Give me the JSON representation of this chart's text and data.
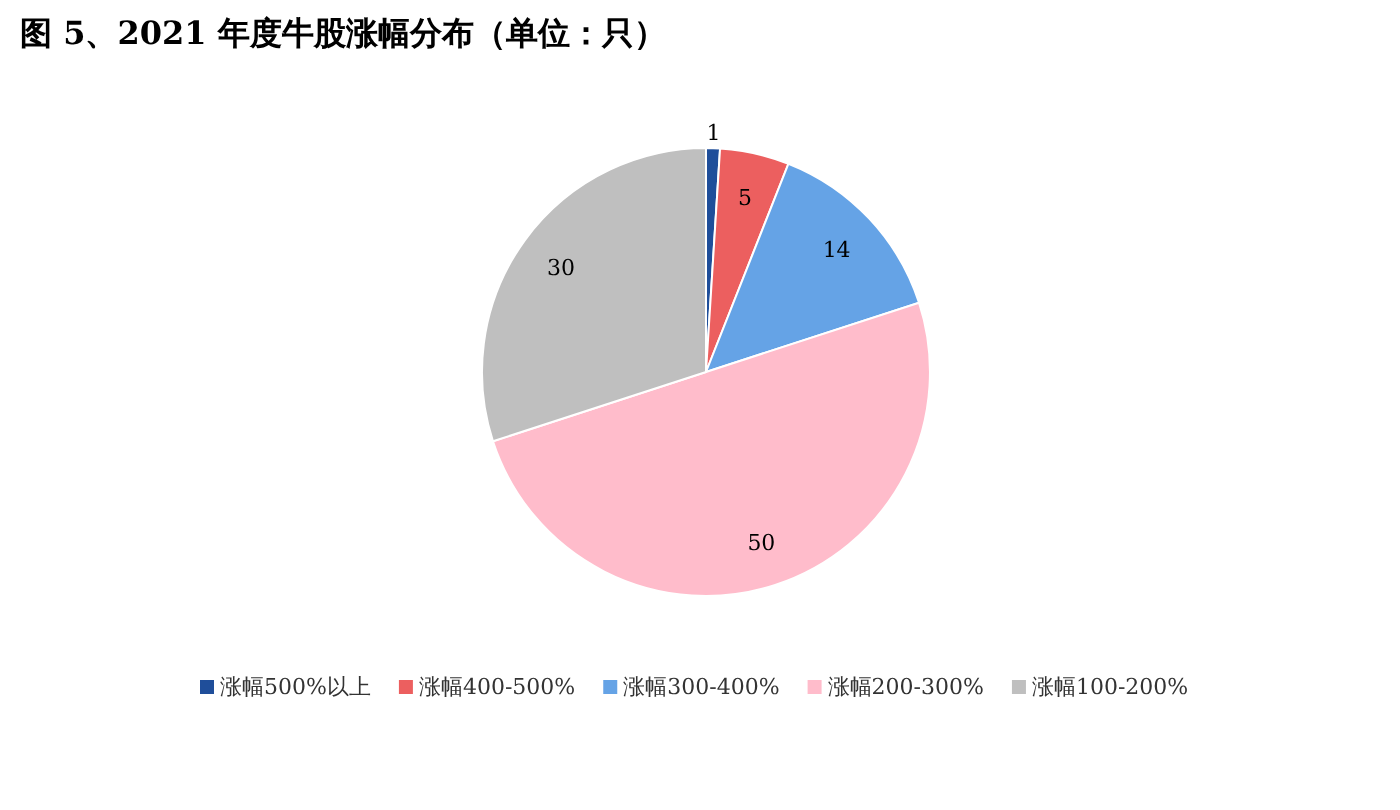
{
  "chart_data": {
    "type": "pie",
    "title": "图 5、2021 年度牛股涨幅分布（单位：只）",
    "categories": [
      "涨幅500%以上",
      "涨幅400-500%",
      "涨幅300-400%",
      "涨幅200-300%",
      "涨幅100-200%"
    ],
    "values": [
      1,
      5,
      14,
      50,
      30
    ],
    "colors": [
      "#1f4e9a",
      "#ec5f5f",
      "#65a3e6",
      "#ffbccb",
      "#bfbfbf"
    ],
    "data_labels": true,
    "legend": "bottom"
  }
}
